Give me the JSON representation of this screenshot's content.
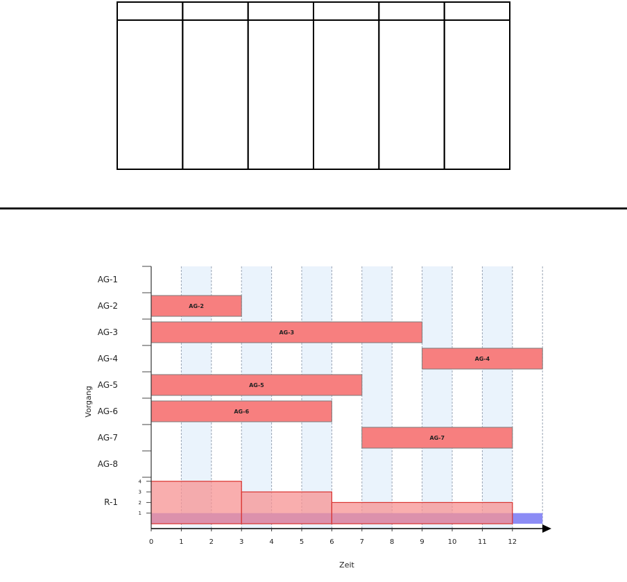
{
  "table": {
    "columns": 6,
    "header_cells": [
      "",
      "",
      "",
      "",
      "",
      ""
    ],
    "body_cells": [
      "",
      "",
      "",
      "",
      "",
      ""
    ]
  },
  "chart_data": {
    "type": "gantt",
    "xlabel": "Zeit",
    "ylabel": "Vorgang",
    "x_ticks": [
      0,
      1,
      2,
      3,
      4,
      5,
      6,
      7,
      8,
      9,
      10,
      11,
      12
    ],
    "x_range": [
      0,
      13
    ],
    "rows": [
      "AG-1",
      "AG-2",
      "AG-3",
      "AG-4",
      "AG-5",
      "AG-6",
      "AG-7",
      "AG-8",
      "R-1"
    ],
    "tasks": [
      {
        "name": "AG-2",
        "start": 0,
        "end": 3
      },
      {
        "name": "AG-3",
        "start": 0,
        "end": 9
      },
      {
        "name": "AG-4",
        "start": 9,
        "end": 13
      },
      {
        "name": "AG-5",
        "start": 0,
        "end": 7
      },
      {
        "name": "AG-6",
        "start": 0,
        "end": 6
      },
      {
        "name": "AG-7",
        "start": 7,
        "end": 12
      }
    ],
    "resource": {
      "name": "R-1",
      "y_ticks": [
        1,
        2,
        3,
        4
      ],
      "y_range": [
        0,
        4
      ],
      "capacity": 1,
      "usage": [
        {
          "start": 0,
          "end": 3,
          "value": 4
        },
        {
          "start": 3,
          "end": 6,
          "value": 3
        },
        {
          "start": 6,
          "end": 12,
          "value": 2
        }
      ]
    },
    "colors": {
      "bar_fill": "#f77f7f",
      "bar_stroke": "#7a7a7a",
      "usage_fill": "#f79393",
      "usage_stroke": "#d8302c",
      "capacity_fill": "#8c8cf5",
      "band_fill": "#eaf3fc",
      "grid": "#9aa4b4"
    },
    "grid": true
  }
}
